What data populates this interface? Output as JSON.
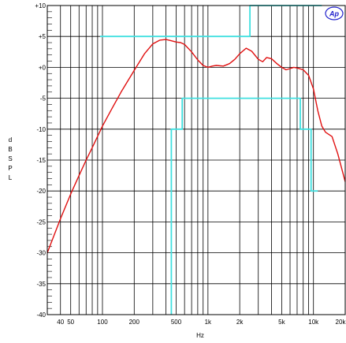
{
  "chart_data": {
    "type": "line",
    "title": "",
    "xlabel": "Hz",
    "ylabel": [
      "d",
      "B",
      "S",
      "P",
      "L"
    ],
    "x_scale": "log",
    "xlim": [
      30,
      20000
    ],
    "ylim": [
      -40,
      10
    ],
    "x_ticks": [
      {
        "value": 40,
        "label": "40"
      },
      {
        "value": 50,
        "label": "50"
      },
      {
        "value": 100,
        "label": "100"
      },
      {
        "value": 200,
        "label": "200"
      },
      {
        "value": 500,
        "label": "500"
      },
      {
        "value": 1000,
        "label": "1k"
      },
      {
        "value": 2000,
        "label": "2k"
      },
      {
        "value": 5000,
        "label": "5k"
      },
      {
        "value": 10000,
        "label": "10k"
      },
      {
        "value": 20000,
        "label": "20k"
      }
    ],
    "y_ticks": [
      {
        "value": 10,
        "label": "+10"
      },
      {
        "value": 5,
        "label": "+5"
      },
      {
        "value": 0,
        "label": "+0"
      },
      {
        "value": -5,
        "label": "-5"
      },
      {
        "value": -10,
        "label": "-10"
      },
      {
        "value": -15,
        "label": "-15"
      },
      {
        "value": -20,
        "label": "-20"
      },
      {
        "value": -25,
        "label": "-25"
      },
      {
        "value": -30,
        "label": "-30"
      },
      {
        "value": -35,
        "label": "-35"
      },
      {
        "value": -40,
        "label": "-40"
      }
    ],
    "grid": true,
    "logo": "Ap",
    "colors": {
      "response": "#e01010",
      "limits": "#40e0e0",
      "grid": "#000000",
      "logo": "#2222cc"
    },
    "series": [
      {
        "color": "#e01010",
        "points": [
          [
            30,
            -30
          ],
          [
            40,
            -24.5
          ],
          [
            50,
            -20.5
          ],
          [
            60,
            -17.5
          ],
          [
            70,
            -15
          ],
          [
            80,
            -13
          ],
          [
            100,
            -9.5
          ],
          [
            120,
            -7
          ],
          [
            150,
            -4
          ],
          [
            200,
            -0.5
          ],
          [
            250,
            2.2
          ],
          [
            300,
            3.8
          ],
          [
            350,
            4.4
          ],
          [
            400,
            4.5
          ],
          [
            450,
            4.3
          ],
          [
            500,
            4.1
          ],
          [
            550,
            4
          ],
          [
            600,
            3.7
          ],
          [
            700,
            2.5
          ],
          [
            800,
            1.2
          ],
          [
            900,
            0.3
          ],
          [
            1000,
            0
          ],
          [
            1100,
            0.2
          ],
          [
            1200,
            0.3
          ],
          [
            1400,
            0.2
          ],
          [
            1600,
            0.6
          ],
          [
            1800,
            1.3
          ],
          [
            2000,
            2.2
          ],
          [
            2300,
            3.1
          ],
          [
            2600,
            2.6
          ],
          [
            3000,
            1.3
          ],
          [
            3300,
            0.9
          ],
          [
            3600,
            1.6
          ],
          [
            4000,
            1.4
          ],
          [
            4500,
            0.6
          ],
          [
            5000,
            0
          ],
          [
            5500,
            -0.4
          ],
          [
            6000,
            -0.2
          ],
          [
            6500,
            0
          ],
          [
            7000,
            -0.1
          ],
          [
            8000,
            -0.4
          ],
          [
            9000,
            -1.3
          ],
          [
            10000,
            -3.5
          ],
          [
            11000,
            -7
          ],
          [
            12000,
            -9.5
          ],
          [
            13000,
            -10.5
          ],
          [
            15000,
            -11.2
          ],
          [
            17000,
            -14
          ],
          [
            20000,
            -18.5
          ]
        ]
      },
      {
        "color": "#40e0e0",
        "points": [
          [
            95,
            5
          ],
          [
            2500,
            5
          ],
          [
            2500,
            10
          ],
          [
            12000,
            10
          ]
        ]
      },
      {
        "color": "#40e0e0",
        "points": [
          [
            450,
            -40
          ],
          [
            450,
            -10
          ],
          [
            570,
            -10
          ],
          [
            570,
            -5
          ],
          [
            7500,
            -5
          ],
          [
            7500,
            -10
          ],
          [
            9500,
            -10
          ],
          [
            9500,
            -20
          ],
          [
            11000,
            -20
          ]
        ]
      }
    ]
  }
}
